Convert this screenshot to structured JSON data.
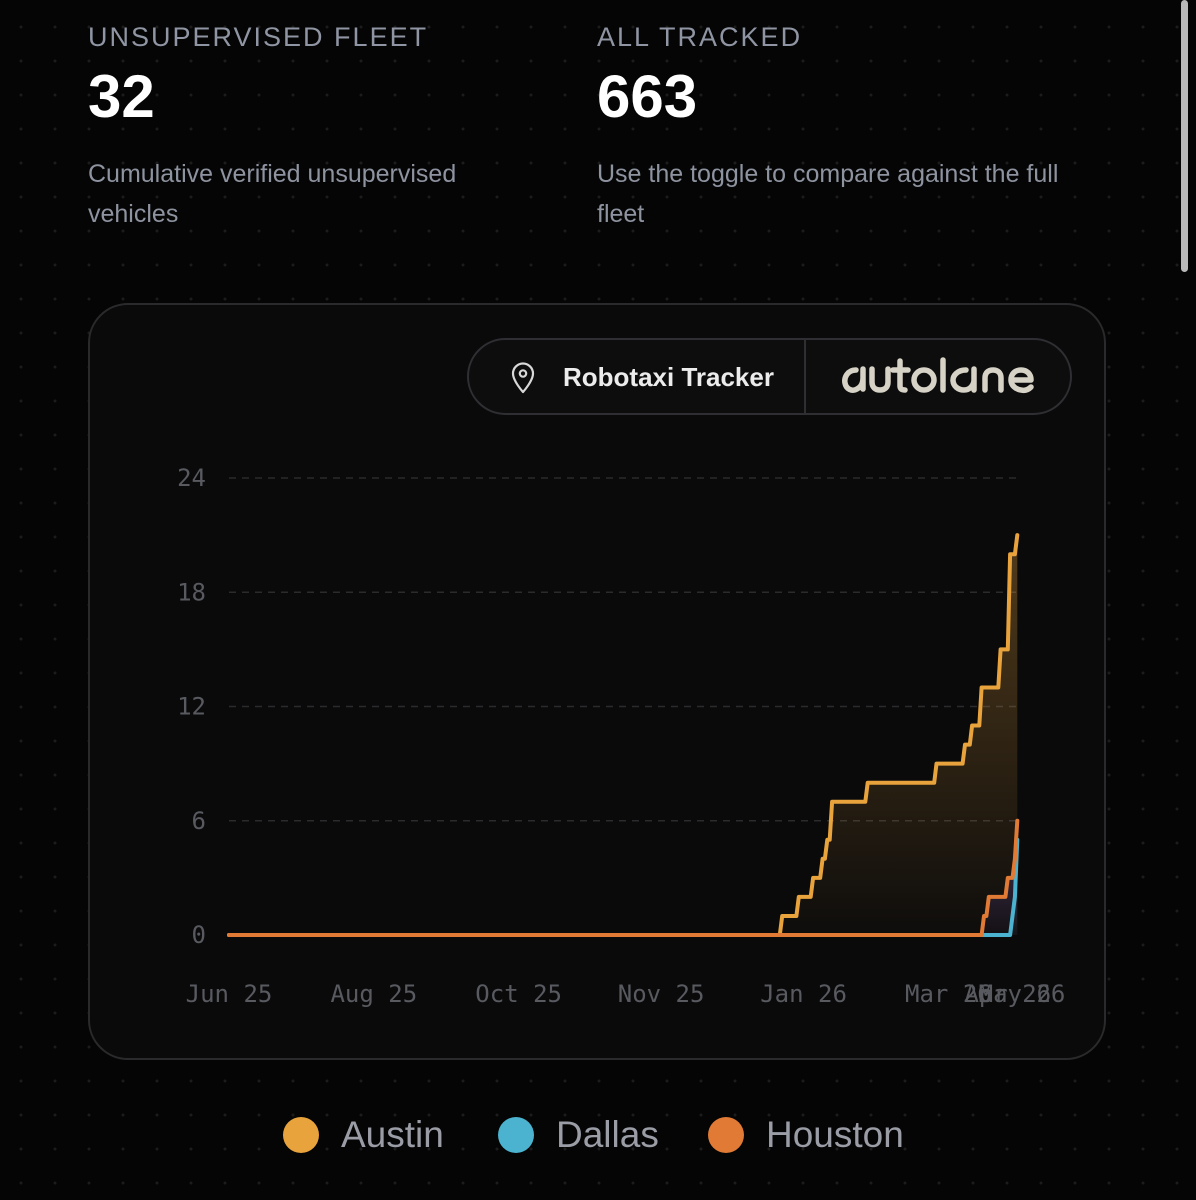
{
  "stats": {
    "unsupervised": {
      "label": "UNSUPERVISED FLEET",
      "value": "32",
      "description": "Cumulative verified unsupervised vehicles"
    },
    "tracked": {
      "label": "ALL TRACKED",
      "value": "663",
      "description": "Use the toggle to compare against the full fleet"
    }
  },
  "brand": {
    "title": "Robotaxi Tracker",
    "logo_text": "autolane",
    "pin_icon": "location-pin-icon"
  },
  "colors": {
    "austin": "#e8a33d",
    "dallas": "#4bb3cf",
    "houston": "#e07a35",
    "background": "#050505"
  },
  "chart_data": {
    "type": "line",
    "title": "",
    "xlabel": "",
    "ylabel": "",
    "step": true,
    "area_fill": true,
    "grid": "horizontal-dashed",
    "ylim": [
      0,
      24
    ],
    "xlim": [
      "2025-06-01",
      "2026-05-01"
    ],
    "yticks": [
      0,
      6,
      12,
      18,
      24
    ],
    "xticks": [
      {
        "label": "Jun 25",
        "date": "2025-06-01"
      },
      {
        "label": "Aug 25",
        "date": "2025-08-01"
      },
      {
        "label": "Oct 25",
        "date": "2025-10-01"
      },
      {
        "label": "Nov 25",
        "date": "2025-11-30"
      },
      {
        "label": "Jan 26",
        "date": "2026-01-29"
      },
      {
        "label": "Mar 26",
        "date": "2026-03-31"
      },
      {
        "label": "Apr 26",
        "date": "2026-04-25"
      },
      {
        "label": "May 26",
        "date": "2026-05-01"
      }
    ],
    "series": [
      {
        "name": "Austin",
        "color": "#e8a33d",
        "points": [
          [
            "2025-06-01",
            0
          ],
          [
            "2026-01-19",
            0
          ],
          [
            "2026-01-20",
            1
          ],
          [
            "2026-01-26",
            1
          ],
          [
            "2026-01-27",
            2
          ],
          [
            "2026-02-01",
            2
          ],
          [
            "2026-02-02",
            3
          ],
          [
            "2026-02-05",
            3
          ],
          [
            "2026-02-06",
            4
          ],
          [
            "2026-02-07",
            4
          ],
          [
            "2026-02-08",
            5
          ],
          [
            "2026-02-09",
            5
          ],
          [
            "2026-02-10",
            7
          ],
          [
            "2026-02-24",
            7
          ],
          [
            "2026-02-25",
            8
          ],
          [
            "2026-03-25",
            8
          ],
          [
            "2026-03-26",
            9
          ],
          [
            "2026-04-06",
            9
          ],
          [
            "2026-04-07",
            10
          ],
          [
            "2026-04-09",
            10
          ],
          [
            "2026-04-10",
            11
          ],
          [
            "2026-04-13",
            11
          ],
          [
            "2026-04-14",
            13
          ],
          [
            "2026-04-21",
            13
          ],
          [
            "2026-04-22",
            15
          ],
          [
            "2026-04-25",
            15
          ],
          [
            "2026-04-26",
            20
          ],
          [
            "2026-04-28",
            20
          ],
          [
            "2026-04-29",
            21
          ]
        ]
      },
      {
        "name": "Dallas",
        "color": "#4bb3cf",
        "points": [
          [
            "2025-06-01",
            0
          ],
          [
            "2026-04-26",
            0
          ],
          [
            "2026-04-28",
            2
          ],
          [
            "2026-04-29",
            5
          ]
        ]
      },
      {
        "name": "Houston",
        "color": "#e07a35",
        "points": [
          [
            "2025-06-01",
            0
          ],
          [
            "2026-04-14",
            0
          ],
          [
            "2026-04-15",
            1
          ],
          [
            "2026-04-16",
            1
          ],
          [
            "2026-04-17",
            2
          ],
          [
            "2026-04-24",
            2
          ],
          [
            "2026-04-25",
            3
          ],
          [
            "2026-04-27",
            3
          ],
          [
            "2026-04-28",
            4
          ],
          [
            "2026-04-29",
            6
          ]
        ]
      }
    ]
  },
  "legend": [
    "Austin",
    "Dallas",
    "Houston"
  ]
}
